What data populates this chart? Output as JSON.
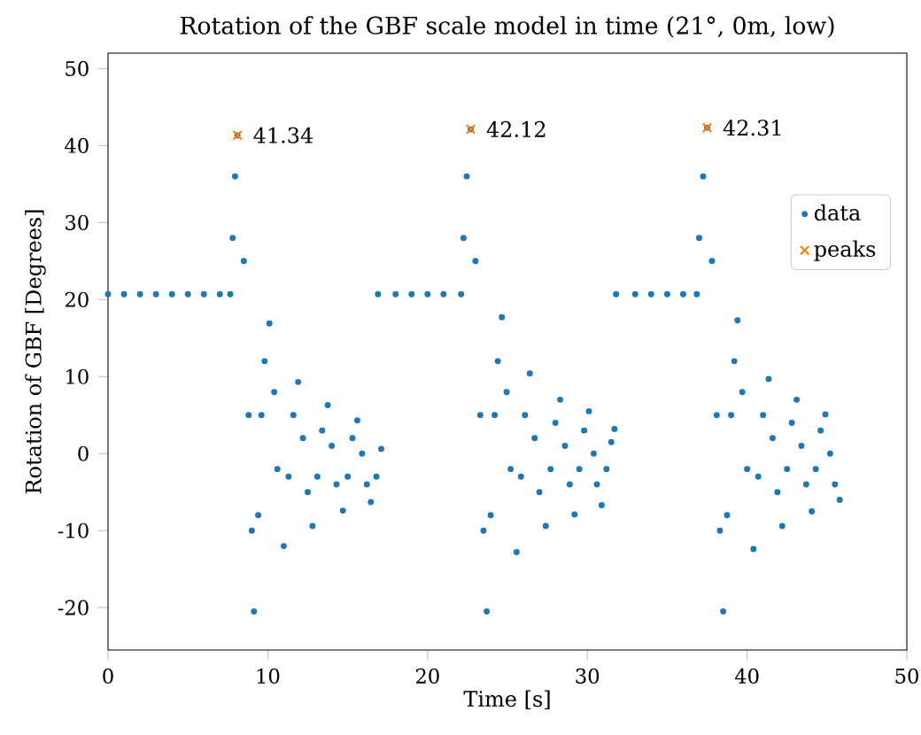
{
  "chart_data": {
    "type": "scatter",
    "title": "Rotation of the GBF scale model in time (21°, 0m, low)",
    "xlabel": "Time [s]",
    "ylabel": "Rotation of GBF [Degrees]",
    "xlim": [
      0,
      50
    ],
    "ylim": [
      -25.5,
      52
    ],
    "xticks": [
      0,
      10,
      20,
      30,
      40,
      50
    ],
    "yticks": [
      -20,
      -10,
      0,
      10,
      20,
      30,
      40,
      50
    ],
    "legend": "right",
    "series": [
      {
        "name": "data",
        "marker": "circle",
        "color": "#1f77b4",
        "x": [
          0,
          1,
          2,
          3,
          4,
          5,
          6,
          7,
          7.65,
          7.8,
          7.95,
          8.1,
          8.5,
          8.8,
          9.0,
          9.13,
          9.4,
          9.6,
          9.8,
          10.1,
          10.4,
          10.6,
          11.0,
          11.3,
          11.6,
          11.9,
          12.2,
          12.5,
          12.8,
          13.1,
          13.4,
          13.75,
          14.0,
          14.3,
          14.7,
          15.0,
          15.3,
          15.6,
          15.9,
          16.2,
          16.45,
          16.8,
          17.1,
          16.9,
          18,
          19,
          20,
          21,
          22.1,
          22.25,
          22.45,
          22.7,
          23.0,
          23.3,
          23.5,
          23.7,
          23.95,
          24.2,
          24.4,
          24.65,
          24.95,
          25.2,
          25.57,
          25.85,
          26.1,
          26.4,
          26.7,
          27.0,
          27.4,
          27.7,
          28.0,
          28.3,
          28.6,
          28.9,
          29.2,
          29.5,
          29.8,
          30.1,
          30.4,
          30.6,
          30.9,
          31.2,
          31.5,
          31.7,
          31.8,
          33,
          34,
          35,
          36,
          36.85,
          37.0,
          37.25,
          37.5,
          37.8,
          38.1,
          38.3,
          38.5,
          38.75,
          39.0,
          39.2,
          39.4,
          39.7,
          40.0,
          40.4,
          40.7,
          41.0,
          41.35,
          41.6,
          41.9,
          42.2,
          42.5,
          42.8,
          43.1,
          43.4,
          43.7,
          44.05,
          44.3,
          44.6,
          44.9,
          45.2,
          45.5,
          45.8
        ],
        "values": [
          20.7,
          20.7,
          20.7,
          20.7,
          20.7,
          20.7,
          20.7,
          20.7,
          20.7,
          28,
          36,
          41.3,
          25,
          5,
          -10,
          -20.5,
          -8,
          5,
          12,
          16.9,
          8,
          -2,
          -12.0,
          -3,
          5,
          9.3,
          2,
          -5,
          -9.4,
          -3,
          3,
          6.3,
          1,
          -4,
          -7.4,
          -3,
          2,
          4.3,
          0,
          -4,
          -6.3,
          -3,
          0.6,
          20.7,
          20.7,
          20.7,
          20.7,
          20.7,
          20.7,
          28,
          36,
          42.1,
          25,
          5,
          -10,
          -20.5,
          -8,
          5,
          12,
          17.7,
          8,
          -2,
          -12.8,
          -3,
          5,
          10.4,
          2,
          -5,
          -9.4,
          -2,
          4,
          7.0,
          1,
          -4,
          -7.9,
          -2,
          3,
          5.5,
          0,
          -4,
          -6.7,
          -2,
          1.5,
          3.2,
          20.7,
          20.7,
          20.7,
          20.7,
          20.7,
          20.7,
          28,
          36,
          42.3,
          25,
          5,
          -10,
          -20.5,
          -8,
          5,
          12,
          17.3,
          8,
          -2,
          -12.4,
          -3,
          5,
          9.7,
          2,
          -5,
          -9.4,
          -2,
          4,
          7.0,
          1,
          -4,
          -7.5,
          -2,
          3,
          5.1,
          0,
          -4,
          -6.0
        ]
      },
      {
        "name": "peaks",
        "marker": "cross",
        "color": "#ff7f0e",
        "x": [
          8.1,
          22.7,
          37.5
        ],
        "values": [
          41.34,
          42.12,
          42.31
        ]
      }
    ],
    "annotations": [
      {
        "text": "41.34",
        "x": 8.1,
        "y": 41.34
      },
      {
        "text": "42.12",
        "x": 22.7,
        "y": 42.12
      },
      {
        "text": "42.31",
        "x": 37.5,
        "y": 42.31
      }
    ]
  }
}
